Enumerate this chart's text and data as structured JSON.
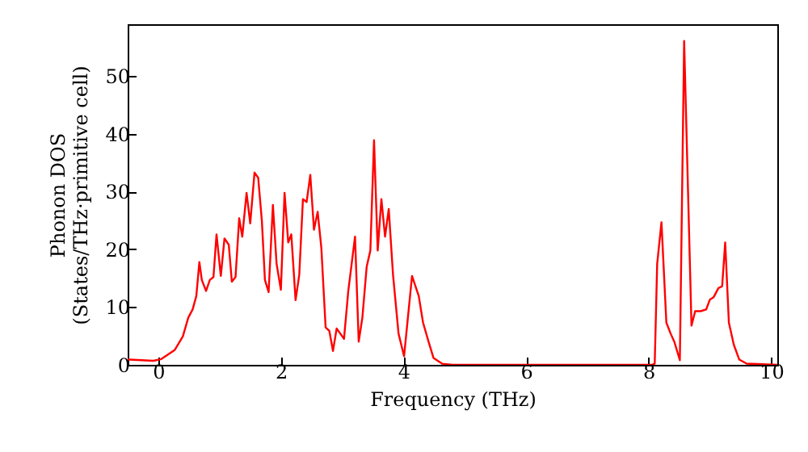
{
  "chart_data": {
    "type": "line",
    "xlabel": "Frequency (THz)",
    "ylabel": "Phonon DOS\n(States/THz·primitive cell)",
    "xlim": [
      -0.5,
      10.1
    ],
    "ylim": [
      0,
      59
    ],
    "xticks": [
      0,
      2,
      4,
      6,
      8,
      10
    ],
    "yticks": [
      0,
      10,
      20,
      30,
      40,
      50
    ],
    "grid": false,
    "series": [
      {
        "color": "#ff0000",
        "x": [
          -0.5,
          -0.47,
          -0.08,
          0.05,
          0.27,
          0.4,
          0.49,
          0.56,
          0.62,
          0.67,
          0.71,
          0.78,
          0.84,
          0.9,
          0.95,
          1.02,
          1.08,
          1.15,
          1.2,
          1.26,
          1.32,
          1.37,
          1.44,
          1.5,
          1.57,
          1.63,
          1.69,
          1.74,
          1.8,
          1.87,
          1.93,
          2.0,
          2.06,
          2.12,
          2.17,
          2.24,
          2.3,
          2.36,
          2.42,
          2.48,
          2.54,
          2.6,
          2.66,
          2.73,
          2.79,
          2.85,
          2.91,
          2.97,
          3.03,
          3.1,
          3.21,
          3.27,
          3.33,
          3.4,
          3.46,
          3.52,
          3.58,
          3.64,
          3.7,
          3.76,
          3.83,
          3.92,
          4.01,
          4.14,
          4.25,
          4.32,
          4.41,
          4.49,
          4.63,
          4.8,
          8.05,
          8.1,
          8.14,
          8.21,
          8.29,
          8.36,
          8.42,
          8.51,
          8.58,
          8.7,
          8.76,
          8.85,
          8.94,
          9.0,
          9.06,
          9.14,
          9.2,
          9.25,
          9.31,
          9.39,
          9.48,
          9.6,
          10.1
        ],
        "values": [
          1.0,
          0.9,
          0.7,
          1.0,
          2.6,
          4.9,
          8.2,
          9.6,
          11.9,
          17.8,
          14.7,
          12.8,
          14.7,
          15.2,
          22.6,
          15.4,
          21.9,
          20.8,
          14.4,
          15.2,
          25.4,
          22.2,
          29.8,
          24.5,
          33.3,
          32.4,
          24.9,
          14.7,
          12.6,
          27.7,
          17.5,
          13.0,
          29.8,
          21.2,
          22.6,
          11.2,
          15.6,
          28.7,
          28.2,
          32.9,
          23.4,
          26.5,
          20.3,
          6.5,
          5.9,
          2.4,
          6.3,
          5.4,
          4.5,
          12.8,
          22.2,
          4.0,
          8.2,
          17.0,
          19.8,
          38.9,
          19.8,
          28.7,
          22.2,
          27.0,
          15.6,
          5.4,
          1.5,
          15.4,
          11.9,
          7.3,
          4.0,
          1.2,
          0.2,
          0,
          0,
          0.2,
          17.5,
          24.7,
          7.3,
          5.4,
          4.0,
          0.8,
          56.1,
          6.8,
          9.3,
          9.3,
          9.6,
          11.3,
          11.7,
          13.3,
          13.6,
          21.2,
          7.3,
          3.5,
          0.9,
          0.2,
          0
        ]
      }
    ]
  }
}
